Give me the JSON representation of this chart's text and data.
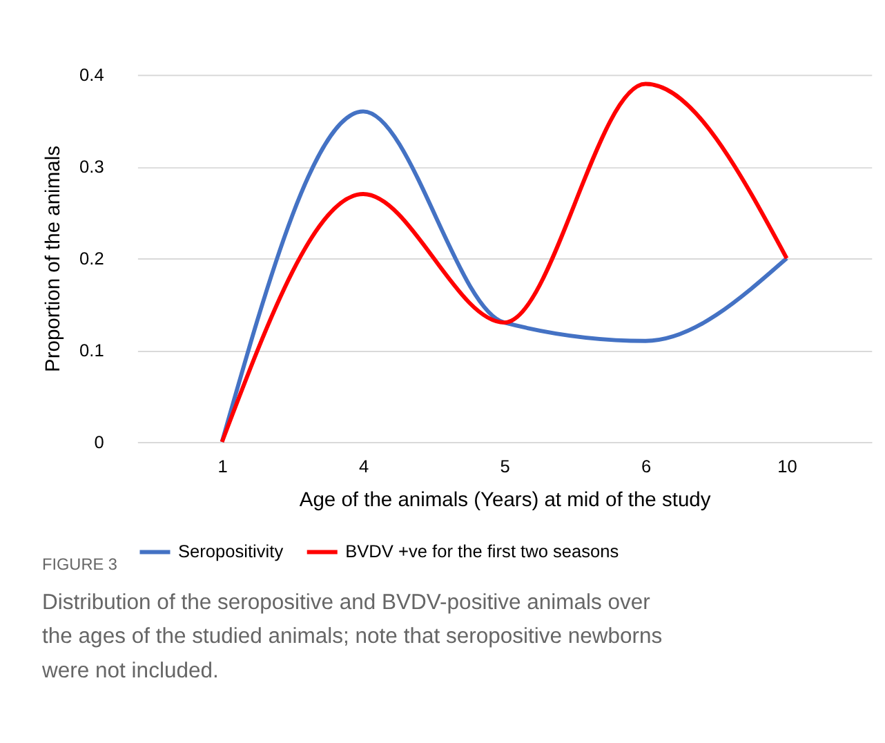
{
  "chart_data": {
    "type": "line",
    "xlabel": "Age of the animals (Years) at mid of the study",
    "ylabel": "Proportion of the animals",
    "categories": [
      "1",
      "4",
      "5",
      "6",
      "10"
    ],
    "series": [
      {
        "name": "Seropositivity",
        "color": "#4472c4",
        "values": [
          0,
          0.36,
          0.13,
          0.11,
          0.2
        ]
      },
      {
        "name": "BVDV +ve for the first two seasons",
        "color": "#ff0000",
        "values": [
          0,
          0.27,
          0.13,
          0.39,
          0.2
        ]
      }
    ],
    "ylim": [
      0,
      0.4
    ],
    "yticks": [
      0,
      0.1,
      0.2,
      0.3,
      0.4
    ],
    "grid": "y",
    "legend": "bottom",
    "marker": "none",
    "line_style": "solid",
    "annotations": [
      "FIGURE 3",
      "Distribution of the seropositive and BVDV-positive animals over the ages of the studied animals; note that seropositive newborns were not included."
    ]
  }
}
